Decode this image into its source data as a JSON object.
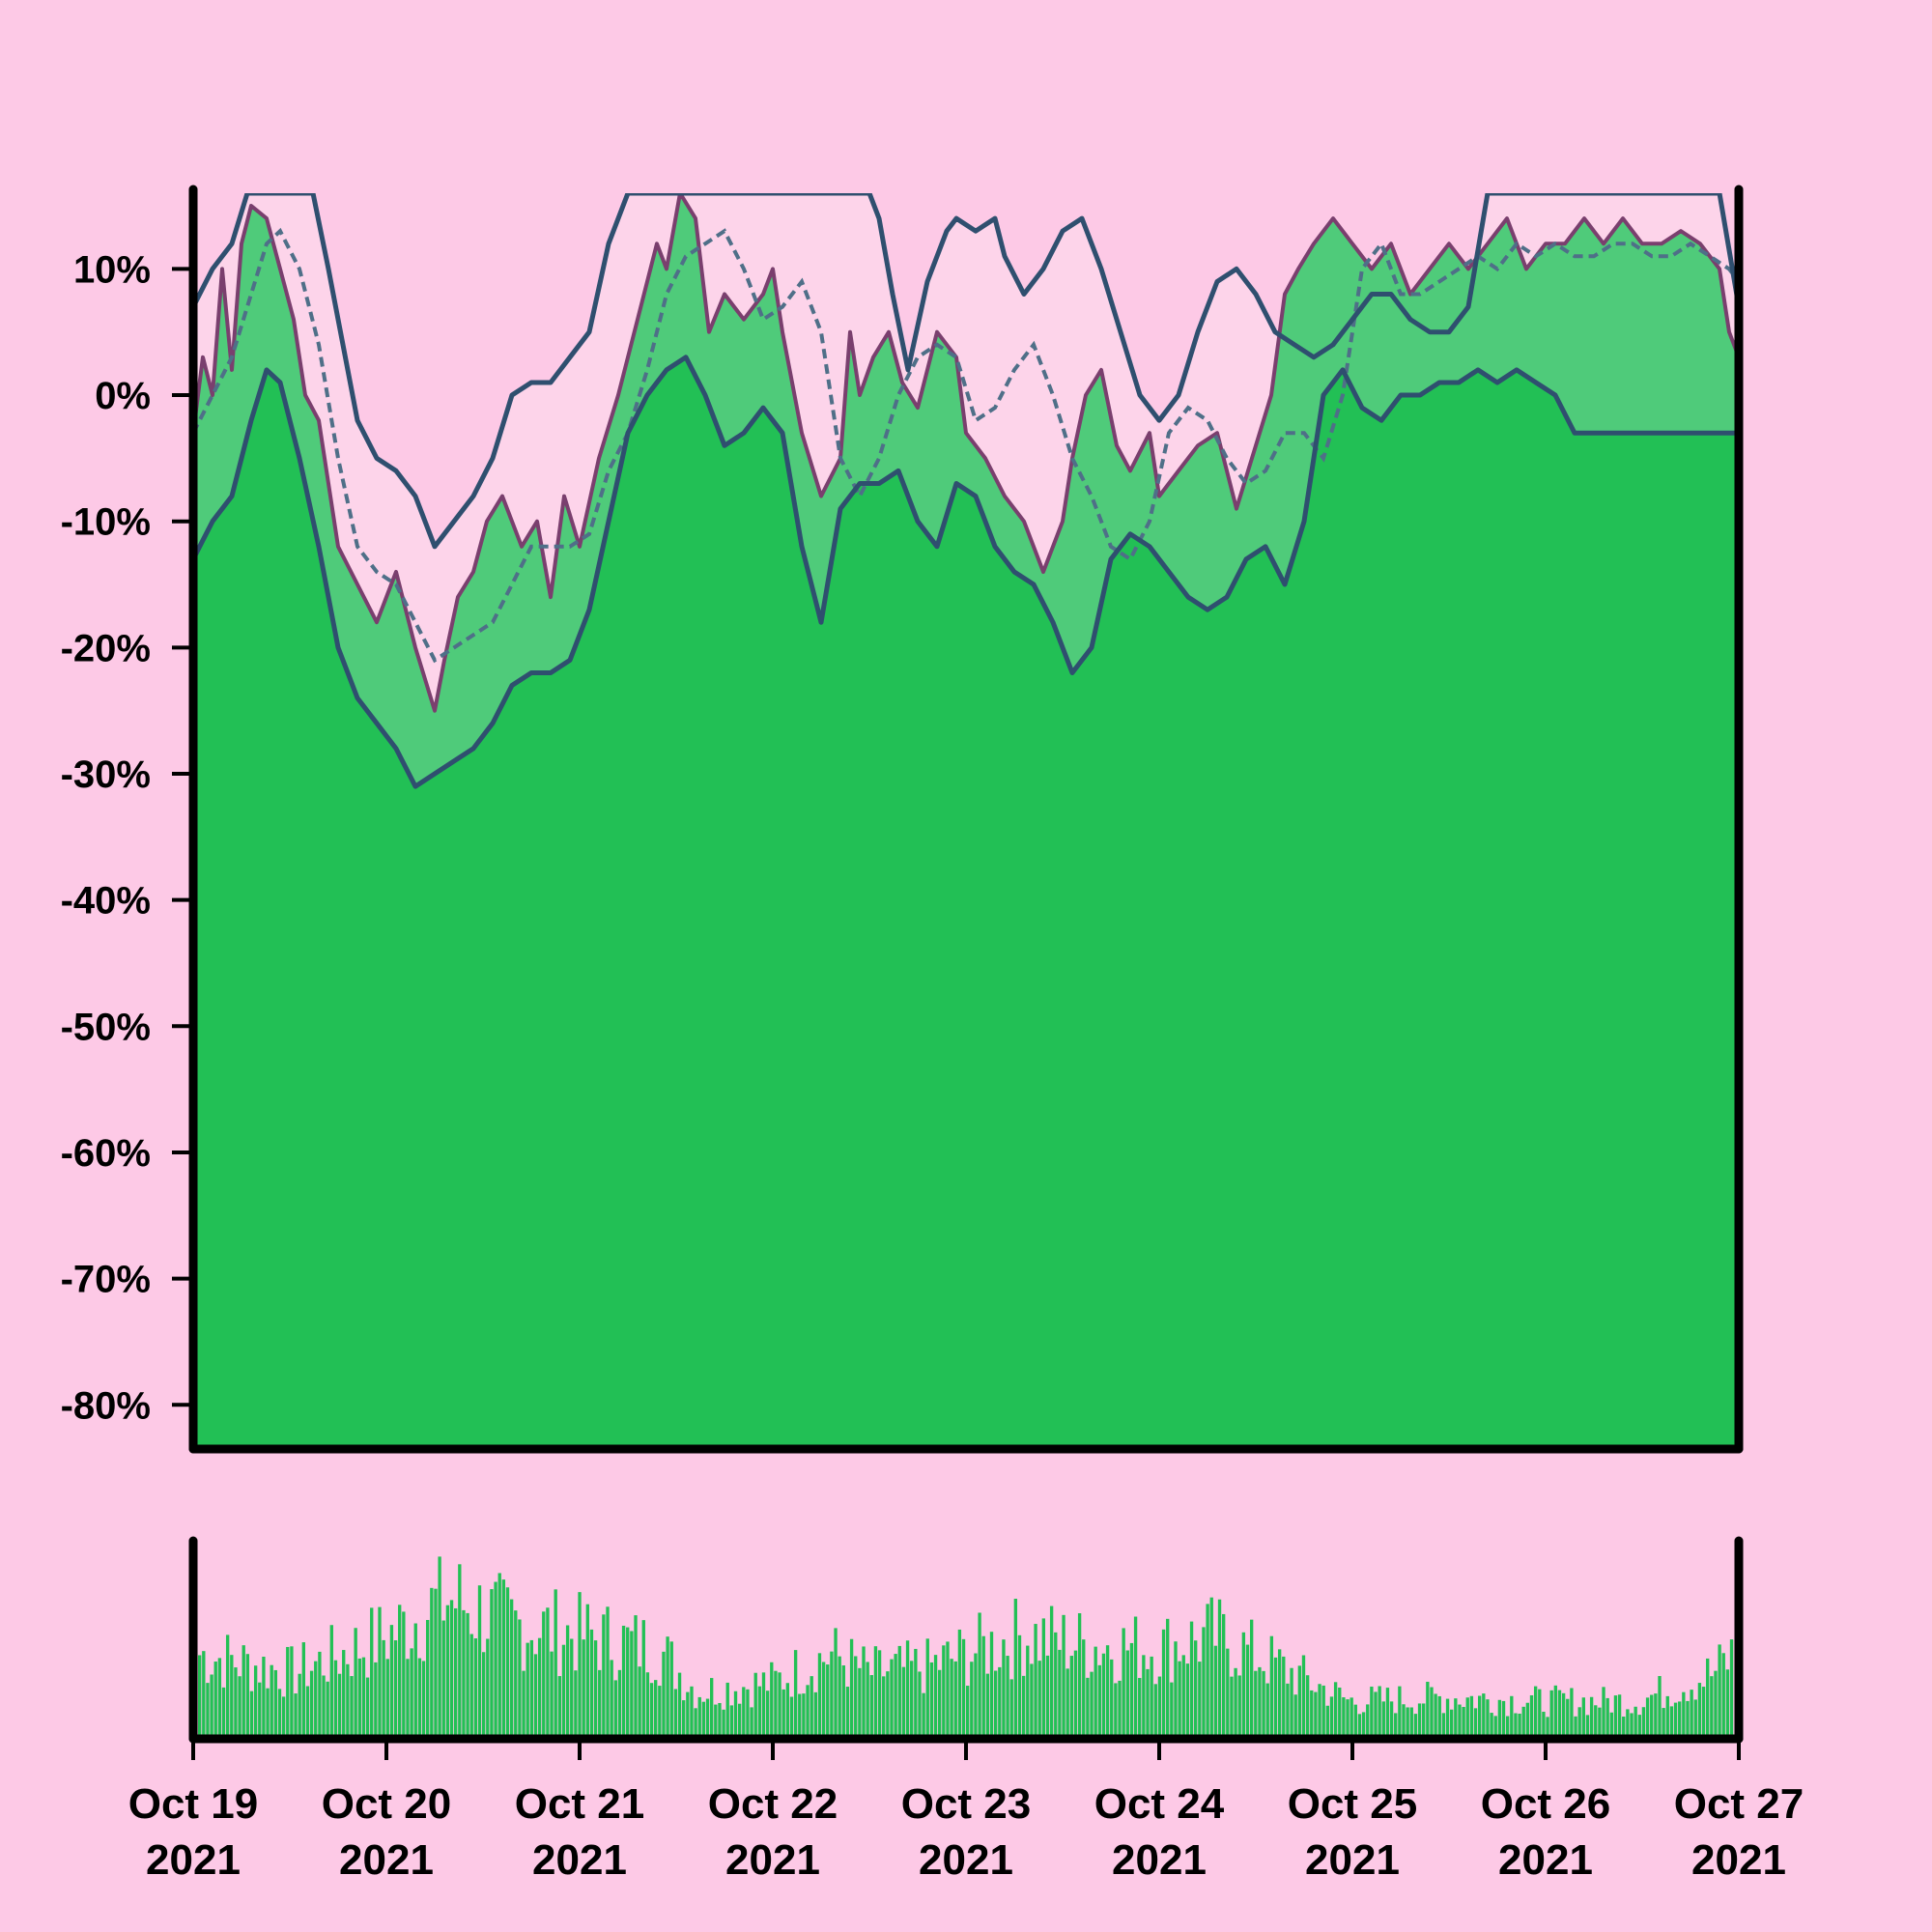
{
  "colors": {
    "background": "#fdc9e6",
    "body_fill": "#22c055",
    "band_fill": "#4fcb7a",
    "upper_band_fill": "#fdd4ea",
    "price_line": "#7a3f6e",
    "band_line": "#2f4f6f",
    "ma_line": "#4f6f88",
    "volume_bar": "#22c055",
    "axis": "#000000"
  },
  "chart_data": {
    "type": "area",
    "panels": [
      "price",
      "volume"
    ],
    "x_start": "2021-10-19",
    "x_end": "2021-10-27",
    "x_tick_labels": [
      {
        "date": "2021-10-19",
        "line1": "Oct 19",
        "line2": "2021"
      },
      {
        "date": "2021-10-20",
        "line1": "Oct 20",
        "line2": "2021"
      },
      {
        "date": "2021-10-21",
        "line1": "Oct 21",
        "line2": "2021"
      },
      {
        "date": "2021-10-22",
        "line1": "Oct 22",
        "line2": "2021"
      },
      {
        "date": "2021-10-23",
        "line1": "Oct 23",
        "line2": "2021"
      },
      {
        "date": "2021-10-24",
        "line1": "Oct 24",
        "line2": "2021"
      },
      {
        "date": "2021-10-25",
        "line1": "Oct 25",
        "line2": "2021"
      },
      {
        "date": "2021-10-26",
        "line1": "Oct 26",
        "line2": "2021"
      },
      {
        "date": "2021-10-27",
        "line1": "Oct 27",
        "line2": "2021"
      }
    ],
    "y_tick_values": [
      10,
      0,
      -10,
      -20,
      -30,
      -40,
      -50,
      -60,
      -70,
      -80
    ],
    "y_tick_labels": [
      "10%",
      "0%",
      "-10%",
      "-20%",
      "-30%",
      "-40%",
      "-50%",
      "-60%",
      "-70%",
      "-80%"
    ],
    "ylim": [
      -83.5,
      16
    ],
    "grid": false,
    "legend": "none",
    "series": [
      {
        "role": "price",
        "days": [
          0.0,
          0.05,
          0.1,
          0.15,
          0.2,
          0.25,
          0.3,
          0.38,
          0.45,
          0.52,
          0.58,
          0.65,
          0.75,
          0.85,
          0.95,
          1.05,
          1.15,
          1.25,
          1.3,
          1.37,
          1.45,
          1.52,
          1.6,
          1.7,
          1.78,
          1.85,
          1.92,
          2.0,
          2.1,
          2.2,
          2.3,
          2.4,
          2.45,
          2.52,
          2.6,
          2.67,
          2.75,
          2.85,
          2.95,
          3.0,
          3.05,
          3.15,
          3.25,
          3.35,
          3.4,
          3.45,
          3.52,
          3.6,
          3.67,
          3.75,
          3.85,
          3.95,
          4.0,
          4.1,
          4.2,
          4.3,
          4.4,
          4.5,
          4.55,
          4.62,
          4.7,
          4.78,
          4.85,
          4.95,
          5.0,
          5.1,
          5.2,
          5.3,
          5.4,
          5.5,
          5.58,
          5.65,
          5.72,
          5.8,
          5.9,
          6.0,
          6.1,
          6.2,
          6.3,
          6.4,
          6.5,
          6.6,
          6.7,
          6.8,
          6.9,
          7.0,
          7.1,
          7.2,
          7.3,
          7.4,
          7.5,
          7.6,
          7.7,
          7.8,
          7.9,
          7.95,
          8.0
        ],
        "values": [
          -3,
          3,
          0,
          10,
          2,
          12,
          15,
          14,
          10,
          6,
          0,
          -2,
          -12,
          -15,
          -18,
          -14,
          -20,
          -25,
          -21,
          -16,
          -14,
          -10,
          -8,
          -12,
          -10,
          -16,
          -8,
          -12,
          -5,
          0,
          6,
          12,
          10,
          16,
          14,
          5,
          8,
          6,
          8,
          10,
          5,
          -3,
          -8,
          -5,
          5,
          0,
          3,
          5,
          1,
          -1,
          5,
          3,
          -3,
          -5,
          -8,
          -10,
          -14,
          -10,
          -5,
          0,
          2,
          -4,
          -6,
          -3,
          -8,
          -6,
          -4,
          -3,
          -9,
          -4,
          0,
          8,
          10,
          12,
          14,
          12,
          10,
          12,
          8,
          10,
          12,
          10,
          12,
          14,
          10,
          12,
          12,
          14,
          12,
          14,
          12,
          12,
          13,
          12,
          10,
          5,
          3
        ]
      },
      {
        "role": "moving-average",
        "style": "dashed",
        "days": [
          0.0,
          0.1,
          0.2,
          0.3,
          0.38,
          0.45,
          0.55,
          0.65,
          0.75,
          0.85,
          0.95,
          1.05,
          1.15,
          1.25,
          1.35,
          1.45,
          1.55,
          1.65,
          1.75,
          1.85,
          1.95,
          2.05,
          2.15,
          2.25,
          2.35,
          2.45,
          2.55,
          2.65,
          2.75,
          2.85,
          2.95,
          3.05,
          3.15,
          3.25,
          3.35,
          3.45,
          3.55,
          3.65,
          3.75,
          3.85,
          3.95,
          4.05,
          4.15,
          4.25,
          4.35,
          4.45,
          4.55,
          4.65,
          4.75,
          4.85,
          4.95,
          5.05,
          5.15,
          5.25,
          5.35,
          5.45,
          5.55,
          5.65,
          5.75,
          5.85,
          5.95,
          6.05,
          6.15,
          6.25,
          6.35,
          6.45,
          6.55,
          6.65,
          6.75,
          6.85,
          6.95,
          7.05,
          7.15,
          7.25,
          7.35,
          7.45,
          7.55,
          7.65,
          7.75,
          7.85,
          7.95,
          8.0
        ],
        "values": [
          -3,
          0,
          3,
          8,
          12,
          13,
          10,
          4,
          -5,
          -12,
          -14,
          -15,
          -18,
          -21,
          -20,
          -19,
          -18,
          -15,
          -12,
          -12,
          -12,
          -11,
          -6,
          -3,
          2,
          8,
          11,
          12,
          13,
          10,
          6,
          7,
          9,
          5,
          -5,
          -8,
          -5,
          0,
          3,
          4,
          3,
          -2,
          -1,
          2,
          4,
          0,
          -5,
          -8,
          -12,
          -13,
          -10,
          -3,
          -1,
          -2,
          -5,
          -7,
          -6,
          -3,
          -3,
          -5,
          0,
          10,
          12,
          8,
          8,
          9,
          10,
          11,
          10,
          12,
          11,
          12,
          11,
          11,
          12,
          12,
          11,
          11,
          12,
          11,
          10,
          9
        ]
      },
      {
        "role": "upper-band",
        "days": [
          0.0,
          0.1,
          0.2,
          0.28,
          0.35,
          0.45,
          0.55,
          0.62,
          0.7,
          0.85,
          0.95,
          1.05,
          1.15,
          1.25,
          1.35,
          1.45,
          1.55,
          1.65,
          1.75,
          1.85,
          1.95,
          2.05,
          2.15,
          2.25,
          2.35,
          2.45,
          2.52,
          2.6,
          2.7,
          2.8,
          2.9,
          3.0,
          3.1,
          3.2,
          3.3,
          3.4,
          3.5,
          3.55,
          3.62,
          3.7,
          3.8,
          3.9,
          3.95,
          4.05,
          4.15,
          4.2,
          4.3,
          4.4,
          4.5,
          4.6,
          4.7,
          4.8,
          4.9,
          5.0,
          5.1,
          5.2,
          5.3,
          5.4,
          5.5,
          5.6,
          5.7,
          5.8,
          5.9,
          6.0,
          6.1,
          6.2,
          6.3,
          6.4,
          6.5,
          6.6,
          6.7,
          6.8,
          6.9,
          7.0,
          7.1,
          7.2,
          7.3,
          7.4,
          7.5,
          7.6,
          7.7,
          7.8,
          7.9,
          8.0
        ],
        "values": [
          7,
          10,
          12,
          16,
          16,
          16,
          16,
          16,
          10,
          -2,
          -5,
          -6,
          -8,
          -12,
          -10,
          -8,
          -5,
          0,
          1,
          1,
          3,
          5,
          12,
          16,
          16,
          16,
          16,
          16,
          16,
          16,
          16,
          16,
          16,
          16,
          16,
          16,
          16,
          14,
          8,
          2,
          9,
          13,
          14,
          13,
          14,
          11,
          8,
          10,
          13,
          14,
          10,
          5,
          0,
          -2,
          0,
          5,
          9,
          10,
          8,
          5,
          4,
          3,
          4,
          6,
          8,
          8,
          6,
          5,
          5,
          7,
          16,
          16,
          16,
          16,
          16,
          16,
          16,
          16,
          16,
          16,
          16,
          16,
          16,
          7
        ]
      },
      {
        "role": "lower-band",
        "days": [
          0.0,
          0.1,
          0.2,
          0.3,
          0.38,
          0.45,
          0.55,
          0.65,
          0.75,
          0.85,
          0.95,
          1.05,
          1.15,
          1.25,
          1.35,
          1.45,
          1.55,
          1.65,
          1.75,
          1.85,
          1.95,
          2.05,
          2.15,
          2.25,
          2.35,
          2.45,
          2.55,
          2.65,
          2.75,
          2.85,
          2.95,
          3.05,
          3.15,
          3.25,
          3.35,
          3.45,
          3.55,
          3.65,
          3.75,
          3.85,
          3.95,
          4.05,
          4.15,
          4.25,
          4.35,
          4.45,
          4.55,
          4.65,
          4.75,
          4.85,
          4.95,
          5.05,
          5.15,
          5.25,
          5.35,
          5.45,
          5.55,
          5.65,
          5.75,
          5.85,
          5.95,
          6.05,
          6.15,
          6.25,
          6.35,
          6.45,
          6.55,
          6.65,
          6.75,
          6.85,
          6.95,
          7.05,
          7.15,
          7.25,
          7.35,
          7.45,
          7.55,
          7.65,
          7.75,
          7.85,
          7.95,
          8.0
        ],
        "values": [
          -13,
          -10,
          -8,
          -2,
          2,
          1,
          -5,
          -12,
          -20,
          -24,
          -26,
          -28,
          -31,
          -30,
          -29,
          -28,
          -26,
          -23,
          -22,
          -22,
          -21,
          -17,
          -10,
          -3,
          0,
          2,
          3,
          0,
          -4,
          -3,
          -1,
          -3,
          -12,
          -18,
          -9,
          -7,
          -7,
          -6,
          -10,
          -12,
          -7,
          -8,
          -12,
          -14,
          -15,
          -18,
          -22,
          -20,
          -13,
          -11,
          -12,
          -14,
          -16,
          -17,
          -16,
          -13,
          -12,
          -15,
          -10,
          0,
          2,
          -1,
          -2,
          0,
          0,
          1,
          1,
          2,
          1,
          2,
          1,
          0,
          -3,
          -3,
          -3,
          -3,
          -3,
          -3,
          -3,
          -3,
          -3,
          -3
        ],
        "note_visual": "dark band line"
      }
    ],
    "volume": {
      "seed": 7,
      "profile_days": [
        0.0,
        0.5,
        1.0,
        1.3,
        1.6,
        2.0,
        2.4,
        2.6,
        3.0,
        3.3,
        3.5,
        3.8,
        4.0,
        4.3,
        4.6,
        5.0,
        5.3,
        5.5,
        6.0,
        6.5,
        7.0,
        7.5,
        7.9,
        8.0
      ],
      "profile_levels": [
        0.45,
        0.35,
        0.55,
        0.75,
        0.62,
        0.55,
        0.48,
        0.25,
        0.3,
        0.45,
        0.35,
        0.38,
        0.45,
        0.55,
        0.5,
        0.48,
        0.55,
        0.45,
        0.2,
        0.22,
        0.2,
        0.2,
        0.35,
        0.45
      ]
    }
  }
}
